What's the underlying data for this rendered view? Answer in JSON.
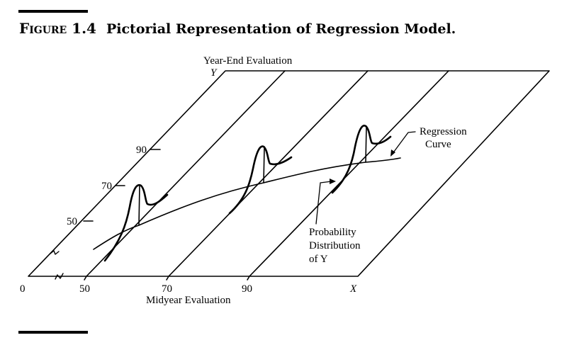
{
  "caption": {
    "figure_label": "Figure 1.4",
    "title": "Pictorial Representation of Regression Model."
  },
  "axes": {
    "y_title": "Year-End Evaluation",
    "y_symbol": "Y",
    "x_title": "Midyear Evaluation",
    "x_symbol": "X",
    "origin_label": "0",
    "x_ticks": [
      "50",
      "70",
      "90"
    ],
    "y_ticks": [
      "50",
      "70",
      "90"
    ]
  },
  "annotations": {
    "regression_line1": "Regression",
    "regression_line2": "Curve",
    "probability_line1": "Probability",
    "probability_line2": "Distribution",
    "probability_line3_prefix": "of",
    "probability_line3_symbol": "Y"
  },
  "colors": {
    "ink": "#000000",
    "paper": "#ffffff"
  }
}
